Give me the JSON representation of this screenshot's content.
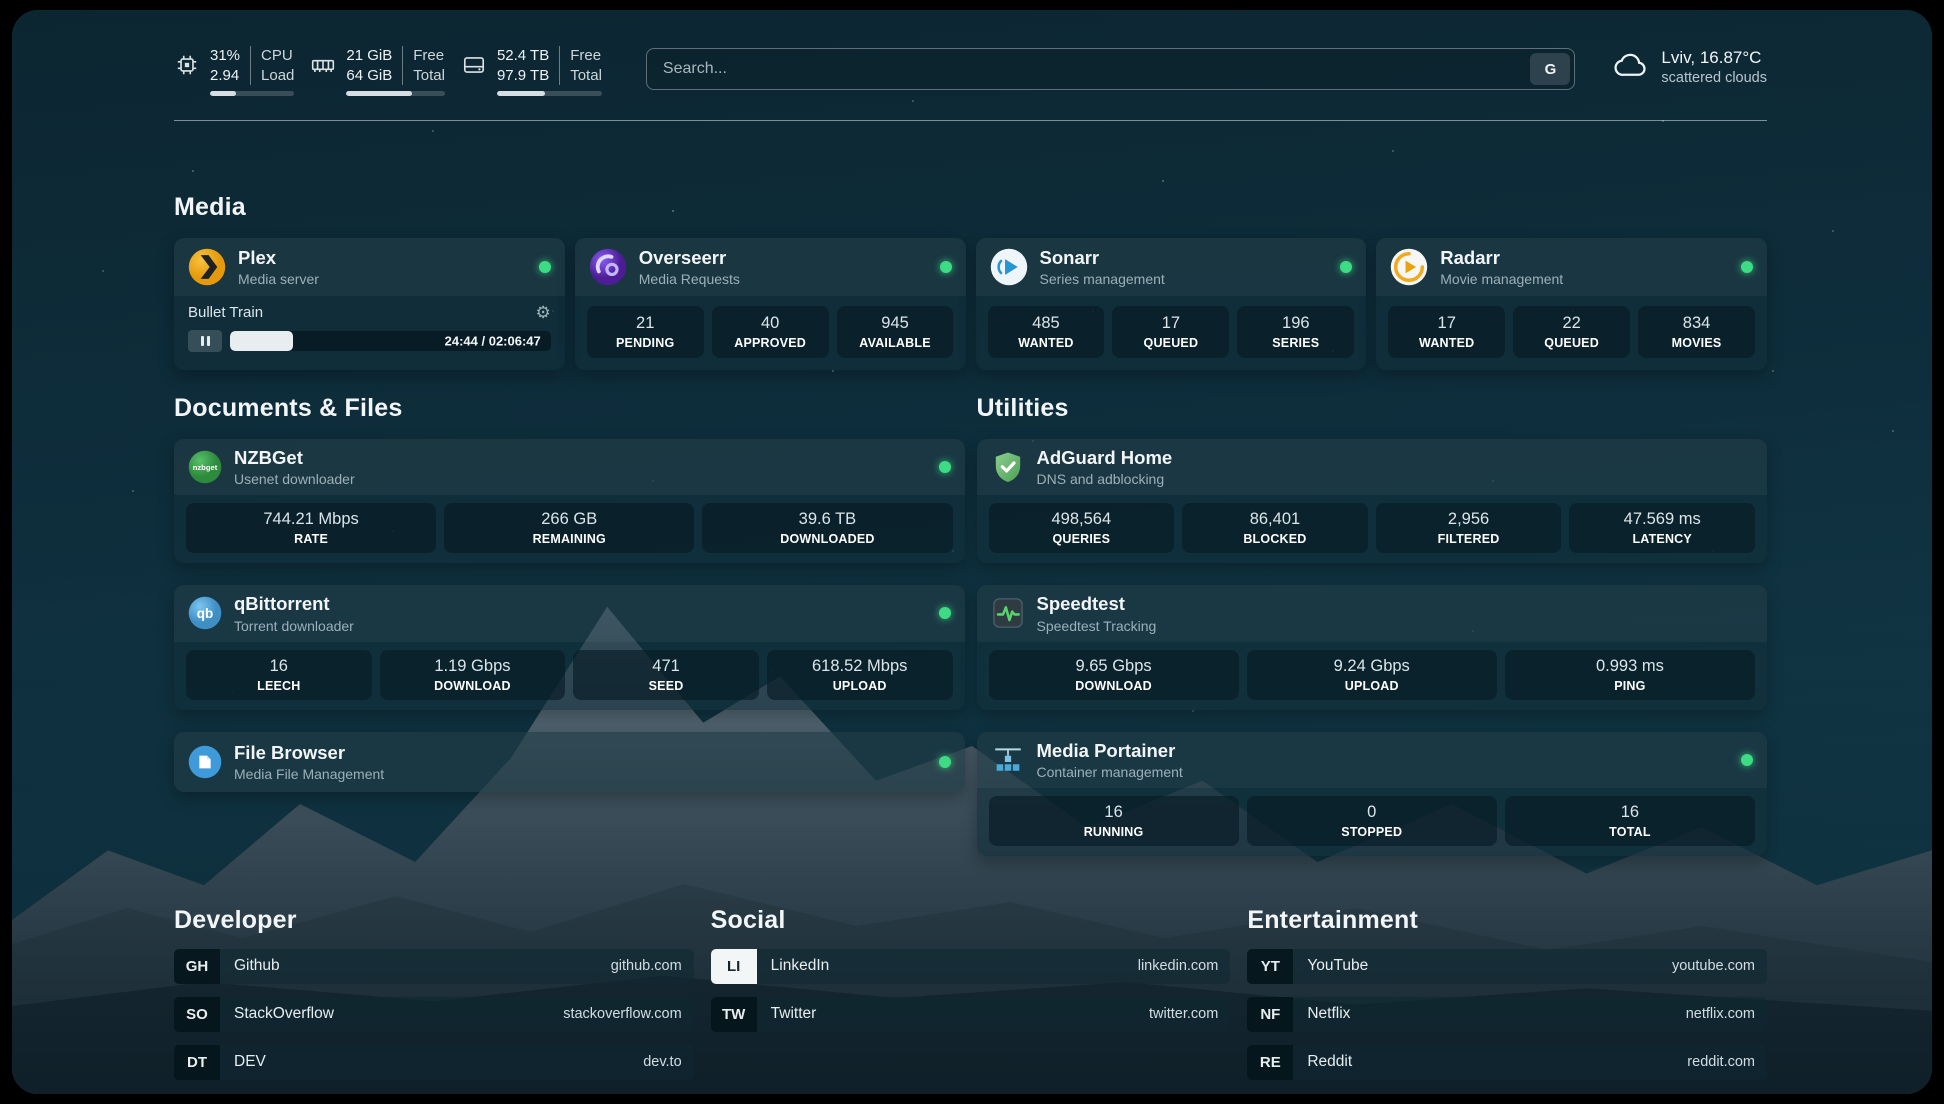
{
  "topbar": {
    "cpu": {
      "value1": "31%",
      "value2": "2.94",
      "label1": "CPU",
      "label2": "Load",
      "percent": 31
    },
    "memory": {
      "value1": "21 GiB",
      "value2": "64 GiB",
      "label1": "Free",
      "label2": "Total",
      "percent": 67
    },
    "disk": {
      "value1": "52.4 TB",
      "value2": "97.9 TB",
      "label1": "Free",
      "label2": "Total",
      "percent": 46
    },
    "search": {
      "placeholder": "Search...",
      "engine": "G"
    },
    "weather": {
      "location": "Lviv, 16.87°C",
      "condition": "scattered clouds"
    }
  },
  "sections": {
    "media": "Media",
    "documents": "Documents & Files",
    "utilities": "Utilities",
    "developer": "Developer",
    "social": "Social",
    "entertainment": "Entertainment"
  },
  "services": {
    "plex": {
      "name": "Plex",
      "desc": "Media server",
      "status": "online",
      "now_playing": {
        "title": "Bullet Train",
        "time": "24:44 / 02:06:47",
        "percent": 19.5
      }
    },
    "overseerr": {
      "name": "Overseerr",
      "desc": "Media Requests",
      "status": "online",
      "stats": [
        {
          "value": "21",
          "label": "PENDING"
        },
        {
          "value": "40",
          "label": "APPROVED"
        },
        {
          "value": "945",
          "label": "AVAILABLE"
        }
      ]
    },
    "sonarr": {
      "name": "Sonarr",
      "desc": "Series management",
      "status": "online",
      "stats": [
        {
          "value": "485",
          "label": "WANTED"
        },
        {
          "value": "17",
          "label": "QUEUED"
        },
        {
          "value": "196",
          "label": "SERIES"
        }
      ]
    },
    "radarr": {
      "name": "Radarr",
      "desc": "Movie management",
      "status": "online",
      "stats": [
        {
          "value": "17",
          "label": "WANTED"
        },
        {
          "value": "22",
          "label": "QUEUED"
        },
        {
          "value": "834",
          "label": "MOVIES"
        }
      ]
    },
    "nzbget": {
      "name": "NZBGet",
      "desc": "Usenet downloader",
      "status": "online",
      "stats": [
        {
          "value": "744.21 Mbps",
          "label": "RATE"
        },
        {
          "value": "266 GB",
          "label": "REMAINING"
        },
        {
          "value": "39.6 TB",
          "label": "DOWNLOADED"
        }
      ]
    },
    "qbittorrent": {
      "name": "qBittorrent",
      "desc": "Torrent downloader",
      "status": "online",
      "stats": [
        {
          "value": "16",
          "label": "LEECH"
        },
        {
          "value": "1.19 Gbps",
          "label": "DOWNLOAD"
        },
        {
          "value": "471",
          "label": "SEED"
        },
        {
          "value": "618.52 Mbps",
          "label": "UPLOAD"
        }
      ]
    },
    "filebrowser": {
      "name": "File Browser",
      "desc": "Media File Management",
      "status": "online"
    },
    "adguard": {
      "name": "AdGuard Home",
      "desc": "DNS and adblocking",
      "stats": [
        {
          "value": "498,564",
          "label": "QUERIES"
        },
        {
          "value": "86,401",
          "label": "BLOCKED"
        },
        {
          "value": "2,956",
          "label": "FILTERED"
        },
        {
          "value": "47.569 ms",
          "label": "LATENCY"
        }
      ]
    },
    "speedtest": {
      "name": "Speedtest",
      "desc": "Speedtest Tracking",
      "stats": [
        {
          "value": "9.65 Gbps",
          "label": "DOWNLOAD"
        },
        {
          "value": "9.24 Gbps",
          "label": "UPLOAD"
        },
        {
          "value": "0.993 ms",
          "label": "PING"
        }
      ]
    },
    "portainer": {
      "name": "Media Portainer",
      "desc": "Container management",
      "status": "online",
      "stats": [
        {
          "value": "16",
          "label": "RUNNING"
        },
        {
          "value": "0",
          "label": "STOPPED"
        },
        {
          "value": "16",
          "label": "TOTAL"
        }
      ]
    }
  },
  "bookmarks": {
    "developer": [
      {
        "abbr": "GH",
        "name": "Github",
        "url": "github.com"
      },
      {
        "abbr": "SO",
        "name": "StackOverflow",
        "url": "stackoverflow.com"
      },
      {
        "abbr": "DT",
        "name": "DEV",
        "url": "dev.to"
      }
    ],
    "social": [
      {
        "abbr": "LI",
        "name": "LinkedIn",
        "url": "linkedin.com"
      },
      {
        "abbr": "TW",
        "name": "Twitter",
        "url": "twitter.com"
      }
    ],
    "entertainment": [
      {
        "abbr": "YT",
        "name": "YouTube",
        "url": "youtube.com"
      },
      {
        "abbr": "NF",
        "name": "Netflix",
        "url": "netflix.com"
      },
      {
        "abbr": "RE",
        "name": "Reddit",
        "url": "reddit.com"
      }
    ]
  },
  "colors": {
    "status_online": "#3ddc84",
    "plex": "#e5a00d",
    "overseerr": "#6d28d9",
    "sonarr": "#2794d6",
    "radarr": "#f1a91d",
    "nzbget": "#3da04c",
    "qbittorrent": "#4aa3df",
    "filebrowser": "#3e9ad9",
    "adguard": "#68bc71",
    "speedtest": "#5ad06e",
    "portainer": "#4aa9d8"
  }
}
